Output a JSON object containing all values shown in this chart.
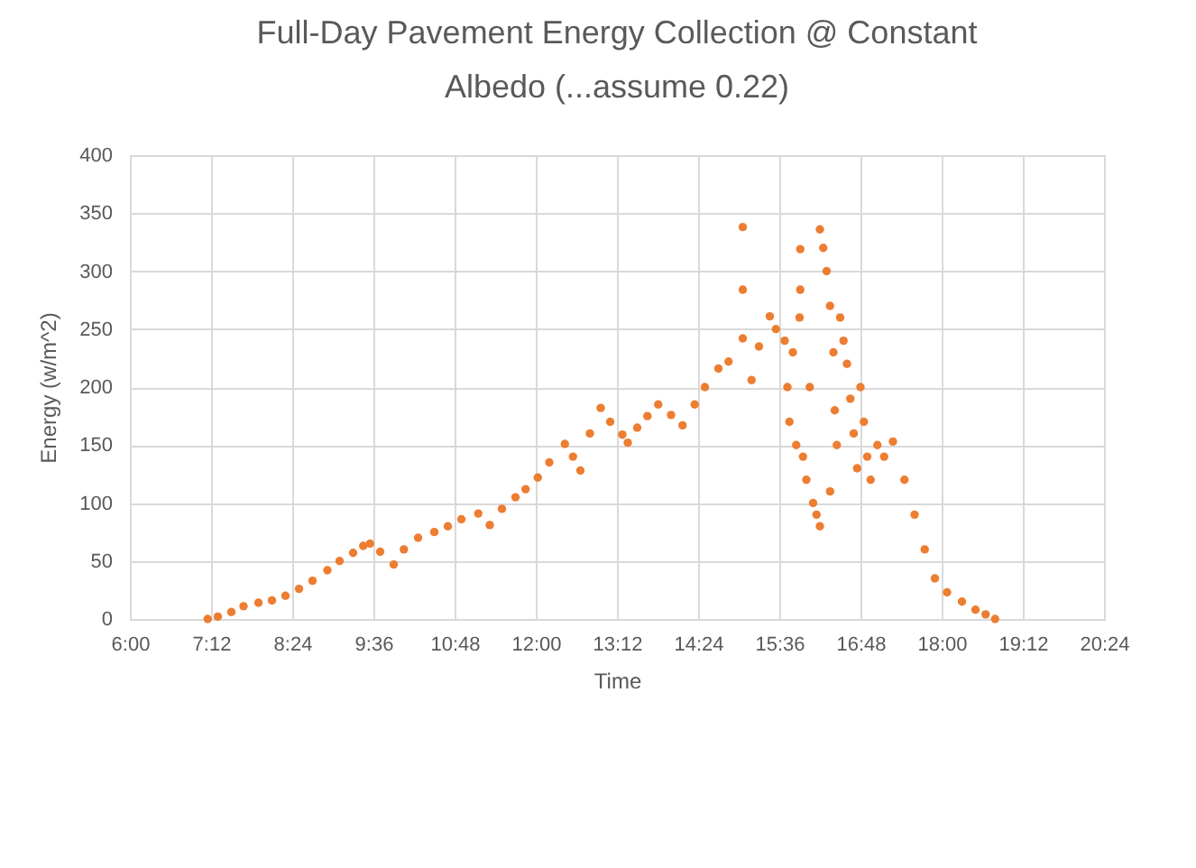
{
  "chart_data": {
    "type": "scatter",
    "title": "Full-Day Pavement Energy Collection @ Constant Albedo (...assume 0.22)",
    "xlabel": "Time",
    "ylabel": "Energy (w/m^2)",
    "x": [
      7.15,
      7.3,
      7.5,
      7.68,
      7.9,
      8.1,
      8.3,
      8.5,
      8.7,
      8.92,
      9.1,
      9.3,
      9.45,
      9.55,
      9.7,
      9.9,
      10.05,
      10.26,
      10.5,
      10.7,
      10.9,
      11.15,
      11.32,
      11.5,
      11.7,
      11.85,
      12.03,
      12.2,
      12.43,
      12.55,
      12.66,
      12.8,
      12.96,
      13.1,
      13.28,
      13.36,
      13.5,
      13.65,
      13.81,
      14.0,
      14.17,
      14.35,
      14.5,
      14.7,
      14.85,
      15.06,
      15.06,
      15.06,
      15.19,
      15.3,
      15.46,
      15.55,
      15.68,
      15.72,
      15.75,
      15.8,
      15.85,
      15.9,
      15.91,
      15.91,
      15.95,
      16.0,
      16.05,
      16.1,
      16.15,
      16.2,
      16.2,
      16.25,
      16.3,
      16.35,
      16.35,
      16.4,
      16.42,
      16.45,
      16.5,
      16.55,
      16.6,
      16.65,
      16.7,
      16.75,
      16.8,
      16.85,
      16.9,
      16.95,
      17.05,
      17.15,
      17.28,
      17.45,
      17.6,
      17.75,
      17.9,
      18.08,
      18.3,
      18.5,
      18.65,
      18.79
    ],
    "series": [
      {
        "color": "#ed7d31",
        "values": [
          0,
          2,
          6,
          11,
          14,
          16,
          20,
          26,
          33,
          42,
          50,
          57,
          63,
          65,
          58,
          47,
          60,
          70,
          75,
          80,
          86,
          91,
          81,
          95,
          105,
          112,
          122,
          135,
          151,
          140,
          128,
          160,
          182,
          170,
          159,
          152,
          165,
          175,
          185,
          176,
          167,
          185,
          200,
          216,
          222,
          242,
          338,
          284,
          206,
          235,
          261,
          250,
          240,
          200,
          170,
          230,
          150,
          260,
          319,
          284,
          140,
          120,
          200,
          100,
          90,
          80,
          336,
          320,
          300,
          270,
          110,
          230,
          180,
          150,
          260,
          240,
          220,
          190,
          160,
          130,
          200,
          170,
          140,
          120,
          150,
          140,
          153,
          120,
          90,
          60,
          35,
          23,
          15,
          8,
          4,
          0
        ]
      }
    ],
    "xlim": [
      6,
      20.4
    ],
    "xticks": [
      {
        "value": 6,
        "label": "6:00"
      },
      {
        "value": 7.2,
        "label": "7:12"
      },
      {
        "value": 8.4,
        "label": "8:24"
      },
      {
        "value": 9.6,
        "label": "9:36"
      },
      {
        "value": 10.8,
        "label": "10:48"
      },
      {
        "value": 12,
        "label": "12:00"
      },
      {
        "value": 13.2,
        "label": "13:12"
      },
      {
        "value": 14.4,
        "label": "14:24"
      },
      {
        "value": 15.6,
        "label": "15:36"
      },
      {
        "value": 16.8,
        "label": "16:48"
      },
      {
        "value": 18,
        "label": "18:00"
      },
      {
        "value": 19.2,
        "label": "19:12"
      },
      {
        "value": 20.4,
        "label": "20:24"
      }
    ],
    "ylim": [
      0,
      400
    ],
    "yticks": [
      0,
      50,
      100,
      150,
      200,
      250,
      300,
      350,
      400
    ],
    "grid": true,
    "marker": "circle"
  }
}
